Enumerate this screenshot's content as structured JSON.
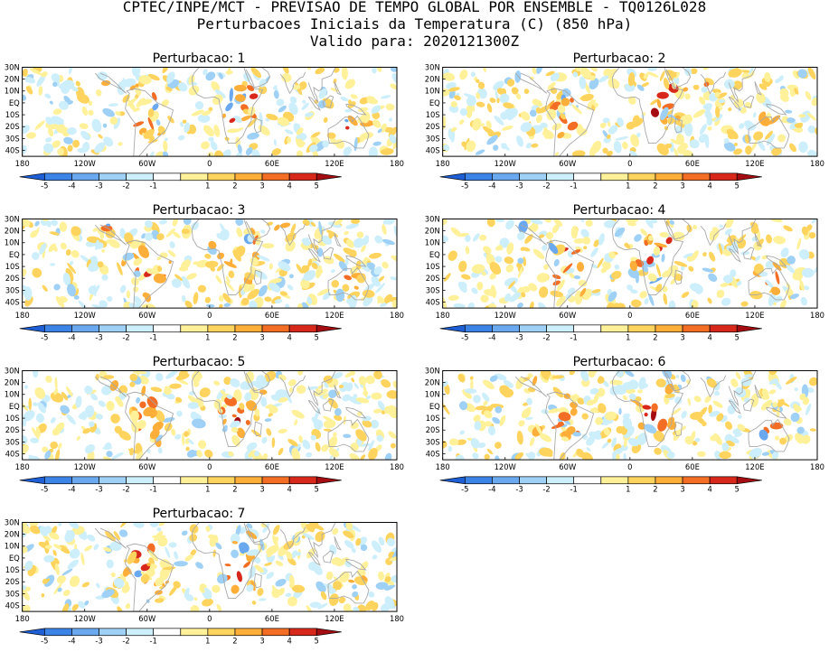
{
  "header": {
    "line1": "CPTEC/INPE/MCT - PREVISAO DE TEMPO GLOBAL POR ENSEMBLE - TQ0126L028",
    "line2": "Perturbacoes Iniciais da Temperatura (C) (850 hPa)",
    "line3": "Valido para: 2020121300Z"
  },
  "panels": [
    {
      "title": "Perturbacao: 1"
    },
    {
      "title": "Perturbacao: 2"
    },
    {
      "title": "Perturbacao: 3"
    },
    {
      "title": "Perturbacao: 4"
    },
    {
      "title": "Perturbacao: 5"
    },
    {
      "title": "Perturbacao: 6"
    },
    {
      "title": "Perturbacao: 7"
    }
  ],
  "map": {
    "lat_labels": [
      "30N",
      "20N",
      "10N",
      "EQ",
      "10S",
      "20S",
      "30S",
      "40S"
    ],
    "lon_labels": [
      "180",
      "120W",
      "60W",
      "0",
      "60E",
      "120E",
      "180"
    ],
    "lat_range": [
      -45,
      30
    ],
    "lon_range": [
      -180,
      180
    ]
  },
  "colorbar": {
    "labels": [
      "-5",
      "-4",
      "-3",
      "-2",
      "-1",
      "1",
      "2",
      "3",
      "4",
      "5"
    ],
    "colors": [
      "#1f5fd6",
      "#3b83e6",
      "#6aa9f0",
      "#9fd0f6",
      "#cdeefb",
      "#ffffff",
      "#fff09a",
      "#ffd45e",
      "#ffae3a",
      "#f36e24",
      "#d8281b",
      "#a50d12"
    ]
  }
}
